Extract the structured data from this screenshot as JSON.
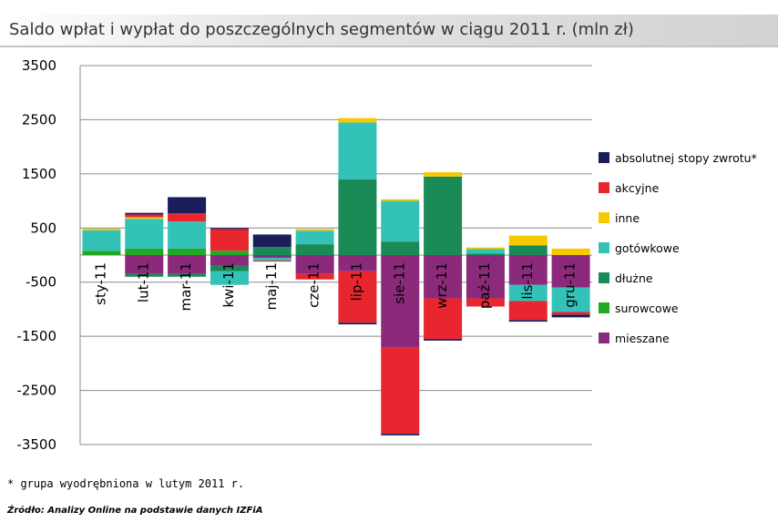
{
  "title": "Saldo wpłat i wypłat do poszczególnych segmentów w ciągu 2011 r. (mln zł)",
  "footnote": "* grupa wyodrębniona w lutym 2011 r.",
  "source": "Źródło: Analizy Online na podstawie danych IZFiA",
  "chart_data": {
    "type": "bar",
    "stacked": true,
    "categories": [
      "sty-11",
      "lut-11",
      "mar-11",
      "kwi-11",
      "maj-11",
      "cze-11",
      "lip-11",
      "sie-11",
      "wrz-11",
      "paź-11",
      "lis-11",
      "gru-11"
    ],
    "yticks": [
      "3500",
      "2500",
      "1500",
      "500",
      "-500",
      "-1500",
      "-2500",
      "-3500"
    ],
    "ylim": [
      -3500,
      3500
    ],
    "grid": true,
    "legend_position": "right",
    "series": [
      {
        "name": "mieszane",
        "color": "#8b2a7a",
        "values": [
          0,
          -350,
          -350,
          -200,
          -50,
          -350,
          -300,
          -1700,
          -800,
          -800,
          -550,
          -600
        ]
      },
      {
        "name": "surowcowe",
        "color": "#22a822",
        "values": [
          80,
          120,
          120,
          80,
          0,
          0,
          0,
          0,
          0,
          0,
          0,
          0
        ]
      },
      {
        "name": "dłużne",
        "color": "#1a8a57",
        "values": [
          0,
          -50,
          -50,
          -100,
          150,
          200,
          1400,
          250,
          1450,
          30,
          180,
          0
        ]
      },
      {
        "name": "gotówkowe",
        "color": "#33c2b8",
        "values": [
          380,
          550,
          500,
          -250,
          -50,
          250,
          1050,
          750,
          0,
          80,
          -300,
          -450
        ]
      },
      {
        "name": "inne",
        "color": "#f5c800",
        "values": [
          30,
          30,
          0,
          0,
          0,
          30,
          80,
          30,
          80,
          30,
          180,
          120
        ]
      },
      {
        "name": "akcyjne",
        "color": "#e8262f",
        "values": [
          0,
          50,
          150,
          400,
          -20,
          -100,
          -950,
          -1600,
          -750,
          -150,
          -350,
          -50
        ]
      },
      {
        "name": "absolutnej stopy zwrotu*",
        "color": "#1b1c5c",
        "values": [
          0,
          30,
          300,
          20,
          230,
          0,
          -30,
          -30,
          -30,
          0,
          -30,
          -50
        ]
      }
    ],
    "legend_order": [
      "absolutnej stopy zwrotu*",
      "akcyjne",
      "inne",
      "gotówkowe",
      "dłużne",
      "surowcowe",
      "mieszane"
    ]
  }
}
